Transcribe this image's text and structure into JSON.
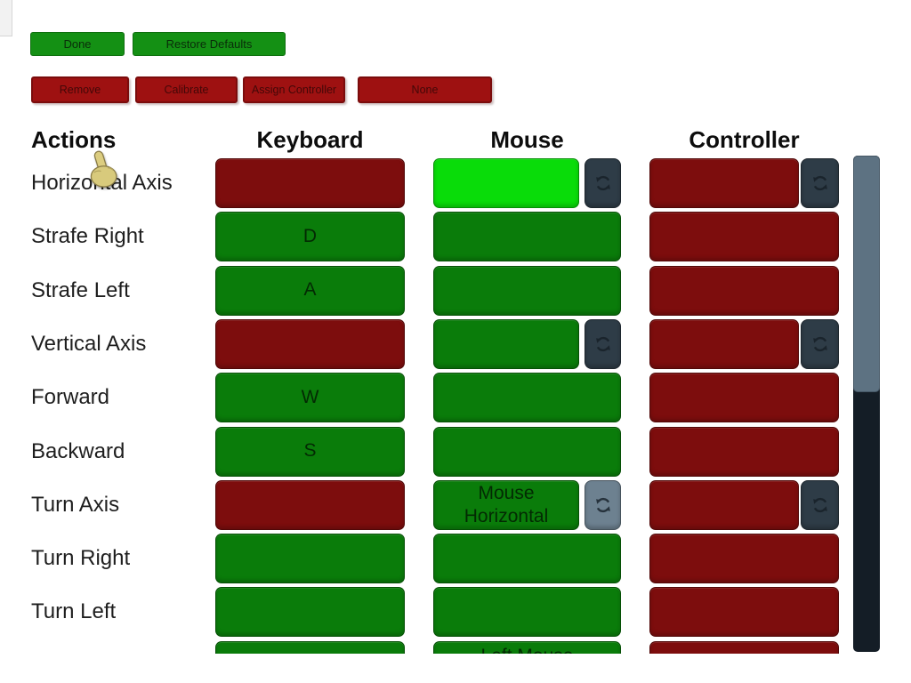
{
  "toolbar": {
    "done": "Done",
    "restore_defaults": "Restore Defaults",
    "remove": "Remove",
    "calibrate": "Calibrate",
    "assign_controller": "Assign Controller",
    "none": "None"
  },
  "headers": {
    "actions": "Actions",
    "keyboard": "Keyboard",
    "mouse": "Mouse",
    "controller": "Controller"
  },
  "rows": [
    {
      "action": "Horizontal Axis",
      "keyboard": {
        "state": "unbound",
        "label": ""
      },
      "mouse": {
        "state": "selected",
        "label": "",
        "invert": "dark"
      },
      "controller": {
        "state": "unbound",
        "label": "",
        "invert": "dark"
      }
    },
    {
      "action": "Strafe Right",
      "keyboard": {
        "state": "bound",
        "label": "D"
      },
      "mouse": {
        "state": "bound",
        "label": ""
      },
      "controller": {
        "state": "unbound",
        "label": ""
      }
    },
    {
      "action": "Strafe Left",
      "keyboard": {
        "state": "bound",
        "label": "A"
      },
      "mouse": {
        "state": "bound",
        "label": ""
      },
      "controller": {
        "state": "unbound",
        "label": ""
      }
    },
    {
      "action": "Vertical Axis",
      "keyboard": {
        "state": "unbound",
        "label": ""
      },
      "mouse": {
        "state": "bound",
        "label": "",
        "invert": "dark"
      },
      "controller": {
        "state": "unbound",
        "label": "",
        "invert": "dark"
      }
    },
    {
      "action": "Forward",
      "keyboard": {
        "state": "bound",
        "label": "W"
      },
      "mouse": {
        "state": "bound",
        "label": ""
      },
      "controller": {
        "state": "unbound",
        "label": ""
      }
    },
    {
      "action": "Backward",
      "keyboard": {
        "state": "bound",
        "label": "S"
      },
      "mouse": {
        "state": "bound",
        "label": ""
      },
      "controller": {
        "state": "unbound",
        "label": ""
      }
    },
    {
      "action": "Turn Axis",
      "keyboard": {
        "state": "unbound",
        "label": ""
      },
      "mouse": {
        "state": "bound",
        "label": "Mouse Horizontal",
        "invert": "light"
      },
      "controller": {
        "state": "unbound",
        "label": "",
        "invert": "dark"
      }
    },
    {
      "action": "Turn Right",
      "keyboard": {
        "state": "bound",
        "label": ""
      },
      "mouse": {
        "state": "bound",
        "label": ""
      },
      "controller": {
        "state": "unbound",
        "label": ""
      }
    },
    {
      "action": "Turn Left",
      "keyboard": {
        "state": "bound",
        "label": ""
      },
      "mouse": {
        "state": "bound",
        "label": ""
      },
      "controller": {
        "state": "unbound",
        "label": ""
      }
    },
    {
      "action": "",
      "keyboard": {
        "state": "bound",
        "label": ""
      },
      "mouse": {
        "state": "bound",
        "label": "Left Mouse",
        "label_align": "top"
      },
      "controller": {
        "state": "unbound",
        "label": ""
      }
    }
  ],
  "icons": {
    "invert_axis": "circular-arrows"
  },
  "colors": {
    "bound_green": "#0a7c0a",
    "selected_green": "#09dc09",
    "unbound_red": "#7d0d0d",
    "toolbar_green": "#149014",
    "toolbar_red": "#9e1111",
    "invert_dark": "#2e3c47",
    "invert_light": "#6d8190",
    "scroll_thumb": "#5d7282",
    "scroll_track": "#141d26"
  },
  "scrollbar": {
    "position": "top"
  },
  "cursor": {
    "type": "pointing-hand"
  }
}
